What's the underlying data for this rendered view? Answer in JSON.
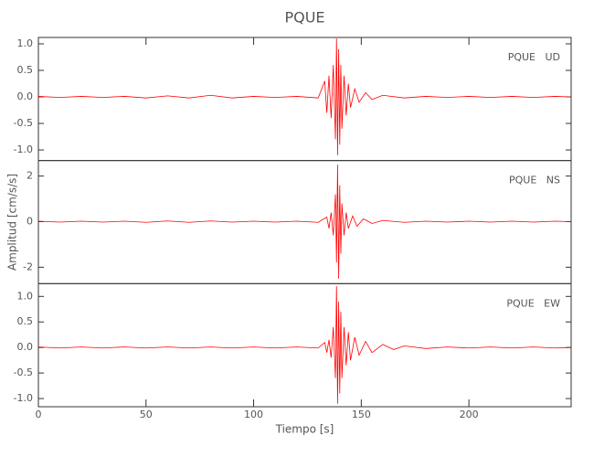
{
  "chart_data": [
    {
      "type": "line",
      "title": "PQUE",
      "annotation": "PQUE   UD",
      "xlim": [
        0,
        247.5
      ],
      "ylim": [
        -1.2,
        1.12
      ],
      "yticks": [
        {
          "value": -1,
          "label": "-1.0"
        },
        {
          "value": -0.5,
          "label": "-0.5"
        },
        {
          "value": 0,
          "label": "0.0"
        },
        {
          "value": 0.5,
          "label": "0.5"
        },
        {
          "value": 1,
          "label": "1.0"
        }
      ],
      "series": [
        {
          "color": "#ff0000",
          "x": [
            0,
            10,
            20,
            30,
            40,
            50,
            60,
            70,
            80,
            90,
            100,
            110,
            120,
            130,
            133,
            134,
            135,
            136,
            137,
            138,
            138.5,
            139,
            139.5,
            140,
            140.5,
            141,
            142,
            143,
            144,
            145,
            147,
            149,
            152,
            155,
            160,
            170,
            180,
            190,
            200,
            210,
            220,
            230,
            240,
            247
          ],
          "values": [
            0.01,
            -0.01,
            0.01,
            -0.01,
            0.01,
            -0.02,
            0.02,
            -0.02,
            0.03,
            -0.02,
            0.01,
            -0.01,
            0.01,
            -0.02,
            0.3,
            -0.3,
            0.4,
            -0.4,
            0.6,
            -0.8,
            1.1,
            -1.1,
            0.9,
            -0.9,
            0.6,
            -0.6,
            0.4,
            -0.35,
            0.25,
            -0.2,
            0.15,
            -0.1,
            0.08,
            -0.05,
            0.03,
            -0.02,
            0.01,
            -0.01,
            0.01,
            -0.01,
            0.01,
            -0.01,
            0.01,
            0
          ]
        }
      ]
    },
    {
      "type": "line",
      "ylabel": "Amplitud [cm/s/s]",
      "annotation": "PQUE   NS",
      "xlim": [
        0,
        247.5
      ],
      "ylim": [
        -2.72,
        2.68
      ],
      "yticks": [
        -2,
        0,
        2
      ],
      "series": [
        {
          "color": "#ff0000",
          "x": [
            0,
            10,
            20,
            30,
            40,
            50,
            60,
            70,
            80,
            90,
            100,
            110,
            120,
            130,
            134,
            135,
            136,
            137,
            138,
            138.5,
            139,
            139.5,
            140,
            140.5,
            141,
            142,
            143,
            144,
            146,
            148,
            151,
            155,
            160,
            170,
            180,
            190,
            200,
            210,
            220,
            230,
            240,
            247
          ],
          "values": [
            0.02,
            -0.02,
            0.02,
            -0.02,
            0.02,
            -0.03,
            0.03,
            -0.03,
            0.03,
            -0.02,
            0.02,
            -0.02,
            0.02,
            -0.03,
            0.2,
            -0.3,
            0.4,
            -0.6,
            1.2,
            -1.8,
            2.5,
            -2.5,
            1.6,
            -1.4,
            0.8,
            -0.6,
            0.4,
            -0.3,
            0.25,
            -0.2,
            0.12,
            -0.08,
            0.05,
            -0.03,
            0.02,
            -0.02,
            0.02,
            -0.02,
            0.02,
            -0.02,
            0.02,
            0
          ]
        }
      ]
    },
    {
      "type": "line",
      "xlabel": "Tiempo [s]",
      "annotation": "PQUE   EW",
      "xlim": [
        0,
        247.5
      ],
      "ylim": [
        -1.16,
        1.25
      ],
      "yticks": [
        {
          "value": -1,
          "label": "-1.0"
        },
        {
          "value": -0.5,
          "label": "-0.5"
        },
        {
          "value": 0,
          "label": "0.0"
        },
        {
          "value": 0.5,
          "label": "0.5"
        },
        {
          "value": 1,
          "label": "1.0"
        }
      ],
      "xticks": [
        0,
        50,
        100,
        150,
        200
      ],
      "series": [
        {
          "color": "#ff0000",
          "x": [
            0,
            10,
            20,
            30,
            40,
            50,
            60,
            70,
            80,
            90,
            100,
            110,
            120,
            130,
            133,
            134,
            135,
            136,
            137,
            138,
            138.5,
            139,
            139.5,
            140,
            140.5,
            141,
            142,
            143,
            144,
            145,
            147,
            149,
            152,
            155,
            160,
            165,
            170,
            180,
            190,
            200,
            210,
            220,
            230,
            240,
            247
          ],
          "values": [
            0.01,
            -0.01,
            0.01,
            -0.01,
            0.01,
            -0.01,
            0.01,
            -0.01,
            0.01,
            -0.01,
            0.01,
            -0.01,
            0.01,
            -0.01,
            0.1,
            -0.1,
            0.15,
            -0.2,
            0.4,
            -0.6,
            1.2,
            -1.1,
            0.9,
            -0.9,
            0.7,
            -0.6,
            0.4,
            -0.35,
            0.3,
            -0.25,
            0.2,
            -0.15,
            0.12,
            -0.1,
            0.06,
            -0.04,
            0.03,
            -0.02,
            0.01,
            -0.01,
            0.01,
            -0.01,
            0.01,
            -0.01,
            0
          ]
        }
      ]
    }
  ]
}
